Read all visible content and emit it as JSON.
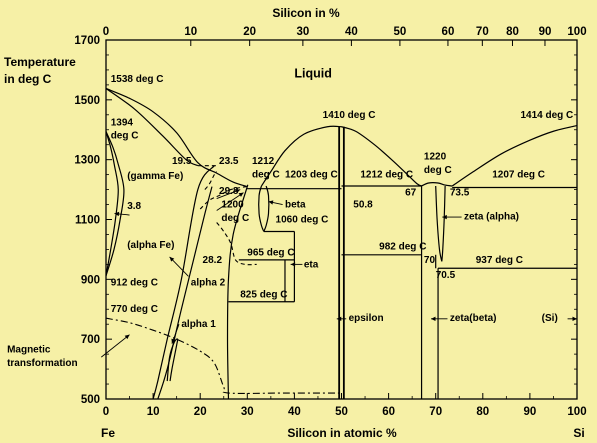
{
  "chart_data": {
    "type": "phase-diagram",
    "title": "",
    "xlabel": "Silicon in atomic %",
    "x2label": "Silicon in %",
    "ylabel": "Temperature in deg C",
    "xlim": [
      0,
      100
    ],
    "ylim": [
      500,
      1700
    ],
    "xticks": [
      "0",
      "10",
      "20",
      "30",
      "40",
      "50",
      "60",
      "70",
      "80",
      "90",
      "100"
    ],
    "yticks": [
      "500",
      "700",
      "900",
      "1100",
      "1300",
      "1500",
      "1700"
    ],
    "x2ticks": [
      "0",
      "10",
      "20",
      "30",
      "40",
      "50",
      "60",
      "70",
      "80",
      "90",
      "100"
    ],
    "x2_positions": [
      0,
      18.0,
      30.5,
      41.8,
      52.1,
      62.4,
      72.6,
      79.9,
      86.3,
      93.2,
      100
    ],
    "endpoint_left": "Fe",
    "endpoint_right": "Si",
    "grid": false,
    "curves": [
      {
        "id": "liquidus-fe",
        "style": "solid",
        "points": [
          [
            0,
            1538
          ],
          [
            5,
            1505
          ],
          [
            10,
            1460
          ],
          [
            15,
            1390
          ],
          [
            19.5,
            1290
          ],
          [
            23.5,
            1255
          ],
          [
            27,
            1225
          ],
          [
            30,
            1210
          ]
        ]
      },
      {
        "id": "liquidus-fe-low",
        "style": "solid",
        "points": [
          [
            0,
            1538
          ],
          [
            6,
            1470
          ],
          [
            12,
            1380
          ],
          [
            17,
            1300
          ],
          [
            19.5,
            1280
          ]
        ]
      },
      {
        "id": "liquidus-mid-left",
        "style": "solid",
        "points": [
          [
            33,
            1212
          ],
          [
            35,
            1260
          ],
          [
            38,
            1330
          ],
          [
            42,
            1385
          ],
          [
            47,
            1410
          ],
          [
            50,
            1410
          ]
        ]
      },
      {
        "id": "liquidus-mid-right",
        "style": "solid",
        "points": [
          [
            50,
            1410
          ],
          [
            53,
            1395
          ],
          [
            57,
            1350
          ],
          [
            61,
            1295
          ],
          [
            64,
            1250
          ],
          [
            66,
            1220
          ],
          [
            67,
            1212
          ]
        ]
      },
      {
        "id": "zeta-dome",
        "style": "solid",
        "points": [
          [
            67,
            1212
          ],
          [
            68.5,
            1222
          ],
          [
            70.5,
            1222
          ],
          [
            72,
            1215
          ],
          [
            73.5,
            1212
          ]
        ]
      },
      {
        "id": "liquidus-si",
        "style": "solid",
        "points": [
          [
            73.5,
            1212
          ],
          [
            78,
            1260
          ],
          [
            84,
            1320
          ],
          [
            90,
            1365
          ],
          [
            95,
            1395
          ],
          [
            100,
            1414
          ]
        ]
      },
      {
        "id": "gamma-loop-outer",
        "style": "solid",
        "points": [
          [
            0,
            1394
          ],
          [
            1.5,
            1340
          ],
          [
            2.5,
            1290
          ],
          [
            3.8,
            1200
          ],
          [
            3,
            1100
          ],
          [
            1.7,
            1000
          ],
          [
            0,
            912
          ]
        ]
      },
      {
        "id": "gamma-loop-inner",
        "style": "solid",
        "points": [
          [
            0,
            1394
          ],
          [
            1,
            1340
          ],
          [
            1.8,
            1280
          ],
          [
            2.6,
            1200
          ],
          [
            2,
            1100
          ],
          [
            1,
            1000
          ],
          [
            0,
            912
          ]
        ]
      },
      {
        "id": "alpha-fe-boundary",
        "style": "solid",
        "points": [
          [
            10,
            500
          ],
          [
            11,
            560
          ],
          [
            13,
            700
          ],
          [
            16,
            900
          ],
          [
            19.5,
            1200
          ],
          [
            23,
            1280
          ]
        ]
      },
      {
        "id": "alpha2-boundary",
        "style": "solid",
        "points": [
          [
            11,
            500
          ],
          [
            13,
            600
          ],
          [
            16,
            800
          ],
          [
            18.5,
            960
          ],
          [
            21,
            1120
          ],
          [
            22.5,
            1210
          ]
        ]
      },
      {
        "id": "alpha1-lens",
        "style": "solid",
        "points": [
          [
            13,
            560
          ],
          [
            13.5,
            640
          ],
          [
            14.5,
            690
          ],
          [
            15.2,
            700
          ],
          [
            15,
            680
          ],
          [
            14,
            600
          ],
          [
            13.6,
            560
          ]
        ]
      },
      {
        "id": "dashed-1200",
        "style": "dash",
        "points": [
          [
            20,
            1135
          ],
          [
            22,
            1165
          ],
          [
            24,
            1180
          ],
          [
            26.5,
            1200
          ],
          [
            29.8,
            1210
          ]
        ]
      },
      {
        "id": "dashed-alpha2",
        "style": "dash",
        "points": [
          [
            21,
            1200
          ],
          [
            22,
            1220
          ],
          [
            23,
            1250
          ],
          [
            23.5,
            1260
          ]
        ]
      },
      {
        "id": "dashed-lower",
        "style": "dash",
        "points": [
          [
            23.5,
            1090
          ],
          [
            25,
            1060
          ],
          [
            26.5,
            1020
          ],
          [
            27.5,
            965
          ],
          [
            29.5,
            950
          ],
          [
            32,
            950
          ]
        ]
      },
      {
        "id": "dashed-top-19-23",
        "style": "dash",
        "points": [
          [
            19.5,
            1280
          ],
          [
            23.5,
            1280
          ]
        ]
      },
      {
        "id": "magnetic",
        "style": "dashdot",
        "points": [
          [
            0,
            770
          ],
          [
            5,
            755
          ],
          [
            10,
            730
          ],
          [
            15,
            700
          ],
          [
            20,
            660
          ],
          [
            23,
            620
          ],
          [
            25,
            540
          ],
          [
            26,
            520
          ],
          [
            38,
            520
          ],
          [
            50,
            520
          ]
        ]
      },
      {
        "id": "beta-left",
        "style": "solid",
        "points": [
          [
            33,
            1212
          ],
          [
            32.5,
            1180
          ],
          [
            32.5,
            1120
          ],
          [
            33,
            1080
          ],
          [
            33.5,
            1060
          ]
        ]
      },
      {
        "id": "beta-right",
        "style": "solid",
        "points": [
          [
            34,
            1212
          ],
          [
            34.5,
            1180
          ],
          [
            34.5,
            1120
          ],
          [
            34,
            1080
          ],
          [
            33.5,
            1060
          ]
        ]
      },
      {
        "id": "alpha-right-boundary",
        "style": "solid",
        "points": [
          [
            26,
            500
          ],
          [
            25.8,
            700
          ],
          [
            26,
            900
          ],
          [
            27,
            1050
          ],
          [
            29.8,
            1200
          ],
          [
            30,
            1210
          ]
        ]
      },
      {
        "id": "zeta-alpha-left",
        "style": "solid",
        "points": [
          [
            70,
            1212
          ],
          [
            70.3,
            1100
          ],
          [
            70.8,
            1000
          ],
          [
            71.3,
            960
          ]
        ]
      },
      {
        "id": "zeta-alpha-right",
        "style": "solid",
        "points": [
          [
            72,
            1212
          ],
          [
            71.8,
            1100
          ],
          [
            71.5,
            1000
          ],
          [
            71.3,
            960
          ]
        ]
      }
    ],
    "lines": [
      {
        "id": "eut-1203",
        "points": [
          [
            29.8,
            1203
          ],
          [
            50,
            1203
          ]
        ]
      },
      {
        "id": "eut-1212",
        "points": [
          [
            50,
            1212
          ],
          [
            67,
            1212
          ]
        ]
      },
      {
        "id": "eut-1207",
        "points": [
          [
            73.5,
            1207
          ],
          [
            100,
            1207
          ]
        ]
      },
      {
        "id": "line-1060",
        "points": [
          [
            33.5,
            1060
          ],
          [
            40,
            1060
          ]
        ]
      },
      {
        "id": "line-965",
        "points": [
          [
            28.2,
            965
          ],
          [
            40,
            965
          ]
        ]
      },
      {
        "id": "line-825",
        "points": [
          [
            26,
            825
          ],
          [
            40,
            825
          ]
        ]
      },
      {
        "id": "line-982",
        "points": [
          [
            50,
            982
          ],
          [
            67,
            982
          ]
        ]
      },
      {
        "id": "line-937",
        "points": [
          [
            70.5,
            937
          ],
          [
            100,
            937
          ]
        ]
      },
      {
        "id": "eta-left",
        "points": [
          [
            38,
            965
          ],
          [
            38,
            825
          ]
        ]
      },
      {
        "id": "eta-right",
        "points": [
          [
            40,
            1060
          ],
          [
            40,
            825
          ]
        ]
      },
      {
        "id": "zeta-beta-left",
        "points": [
          [
            67,
            1212
          ],
          [
            67,
            500
          ]
        ]
      },
      {
        "id": "zeta-beta-right",
        "points": [
          [
            70,
            982
          ],
          [
            70,
            937
          ]
        ]
      },
      {
        "id": "zeta-beta-right2",
        "points": [
          [
            70.5,
            937
          ],
          [
            70.5,
            500
          ]
        ]
      },
      {
        "id": "epsilon-left",
        "points": [
          [
            49.5,
            1410
          ],
          [
            49.5,
            500
          ]
        ]
      },
      {
        "id": "epsilon-right",
        "points": [
          [
            50.5,
            1410
          ],
          [
            50.5,
            500
          ]
        ]
      }
    ],
    "annotations": [
      {
        "text": "Liquid",
        "x": 40,
        "y": 1575,
        "size": "big"
      },
      {
        "text": "1538 deg C",
        "x": 1,
        "y": 1560
      },
      {
        "text": "1394",
        "x": 1,
        "y": 1415
      },
      {
        "text": "deg C",
        "x": 1,
        "y": 1370
      },
      {
        "text": "(gamma Fe)",
        "x": 4.5,
        "y": 1235
      },
      {
        "text": "3.8",
        "x": 4.5,
        "y": 1135
      },
      {
        "text": "19.5",
        "x": 14,
        "y": 1285
      },
      {
        "text": "23.5",
        "x": 24,
        "y": 1285
      },
      {
        "text": "1212",
        "x": 31,
        "y": 1285
      },
      {
        "text": "deg C",
        "x": 31,
        "y": 1240
      },
      {
        "text": "1203 deg C",
        "x": 38,
        "y": 1240
      },
      {
        "text": "1410 deg C",
        "x": 46,
        "y": 1440
      },
      {
        "text": "1414 deg C",
        "x": 88,
        "y": 1440
      },
      {
        "text": "1220",
        "x": 67.5,
        "y": 1300
      },
      {
        "text": "deg C",
        "x": 67.5,
        "y": 1255
      },
      {
        "text": "1212 deg C",
        "x": 54,
        "y": 1240
      },
      {
        "text": "1207 deg C",
        "x": 82,
        "y": 1240
      },
      {
        "text": "67",
        "x": 63.5,
        "y": 1180
      },
      {
        "text": "73.5",
        "x": 73,
        "y": 1180
      },
      {
        "text": "29.8",
        "x": 24,
        "y": 1185
      },
      {
        "text": "1200",
        "x": 24.5,
        "y": 1140
      },
      {
        "text": "deg C",
        "x": 24.5,
        "y": 1095
      },
      {
        "text": "beta",
        "x": 38,
        "y": 1140
      },
      {
        "text": "1060 deg C",
        "x": 36,
        "y": 1090
      },
      {
        "text": "50.8",
        "x": 52.5,
        "y": 1140
      },
      {
        "text": "zeta (alpha)",
        "x": 76,
        "y": 1100
      },
      {
        "text": "965 deg C",
        "x": 30,
        "y": 980
      },
      {
        "text": "28.2",
        "x": 20.5,
        "y": 955
      },
      {
        "text": "eta",
        "x": 42,
        "y": 940
      },
      {
        "text": "982 deg C",
        "x": 58,
        "y": 1000
      },
      {
        "text": "70",
        "x": 67.5,
        "y": 955
      },
      {
        "text": "937 deg C",
        "x": 78.5,
        "y": 955
      },
      {
        "text": "70.5",
        "x": 70,
        "y": 905
      },
      {
        "text": "(alpha Fe)",
        "x": 4.5,
        "y": 1005
      },
      {
        "text": "alpha 2",
        "x": 18,
        "y": 880
      },
      {
        "text": "912 deg C",
        "x": 1,
        "y": 880
      },
      {
        "text": "825 deg C",
        "x": 28.5,
        "y": 840
      },
      {
        "text": "770 deg C",
        "x": 1,
        "y": 790
      },
      {
        "text": "alpha 1",
        "x": 16,
        "y": 740
      },
      {
        "text": "epsilon",
        "x": 51.5,
        "y": 760
      },
      {
        "text": "zeta(beta)",
        "x": 73,
        "y": 760
      },
      {
        "text": "(Si)",
        "x": 92.5,
        "y": 760
      },
      {
        "text": "Magnetic",
        "x": -21,
        "y": 655
      },
      {
        "text": "transformation",
        "x": -21,
        "y": 610
      }
    ],
    "pointers": [
      {
        "from": [
          5,
          1115
        ],
        "to": [
          1.8,
          1120
        ]
      },
      {
        "from": [
          23.5,
          1130
        ],
        "to": [
          29.2,
          1190
        ]
      },
      {
        "from": [
          23.5,
          1170
        ],
        "to": [
          28.5,
          1200
        ]
      },
      {
        "from": [
          37.5,
          1150
        ],
        "to": [
          34.5,
          1160
        ]
      },
      {
        "from": [
          41.7,
          950
        ],
        "to": [
          39.2,
          950
        ]
      },
      {
        "from": [
          51,
          768
        ],
        "to": [
          49,
          768
        ]
      },
      {
        "from": [
          72.5,
          768
        ],
        "to": [
          69,
          768
        ]
      },
      {
        "from": [
          98,
          768
        ],
        "to": [
          100,
          768
        ]
      },
      {
        "from": [
          75.5,
          1108
        ],
        "to": [
          71.4,
          1108
        ]
      },
      {
        "from": [
          17.5,
          910
        ],
        "to": [
          13.5,
          975
        ]
      },
      {
        "from": [
          15.5,
          750
        ],
        "to": [
          14,
          685
        ]
      },
      {
        "from": [
          -1,
          640
        ],
        "to": [
          5,
          715
        ]
      }
    ]
  }
}
